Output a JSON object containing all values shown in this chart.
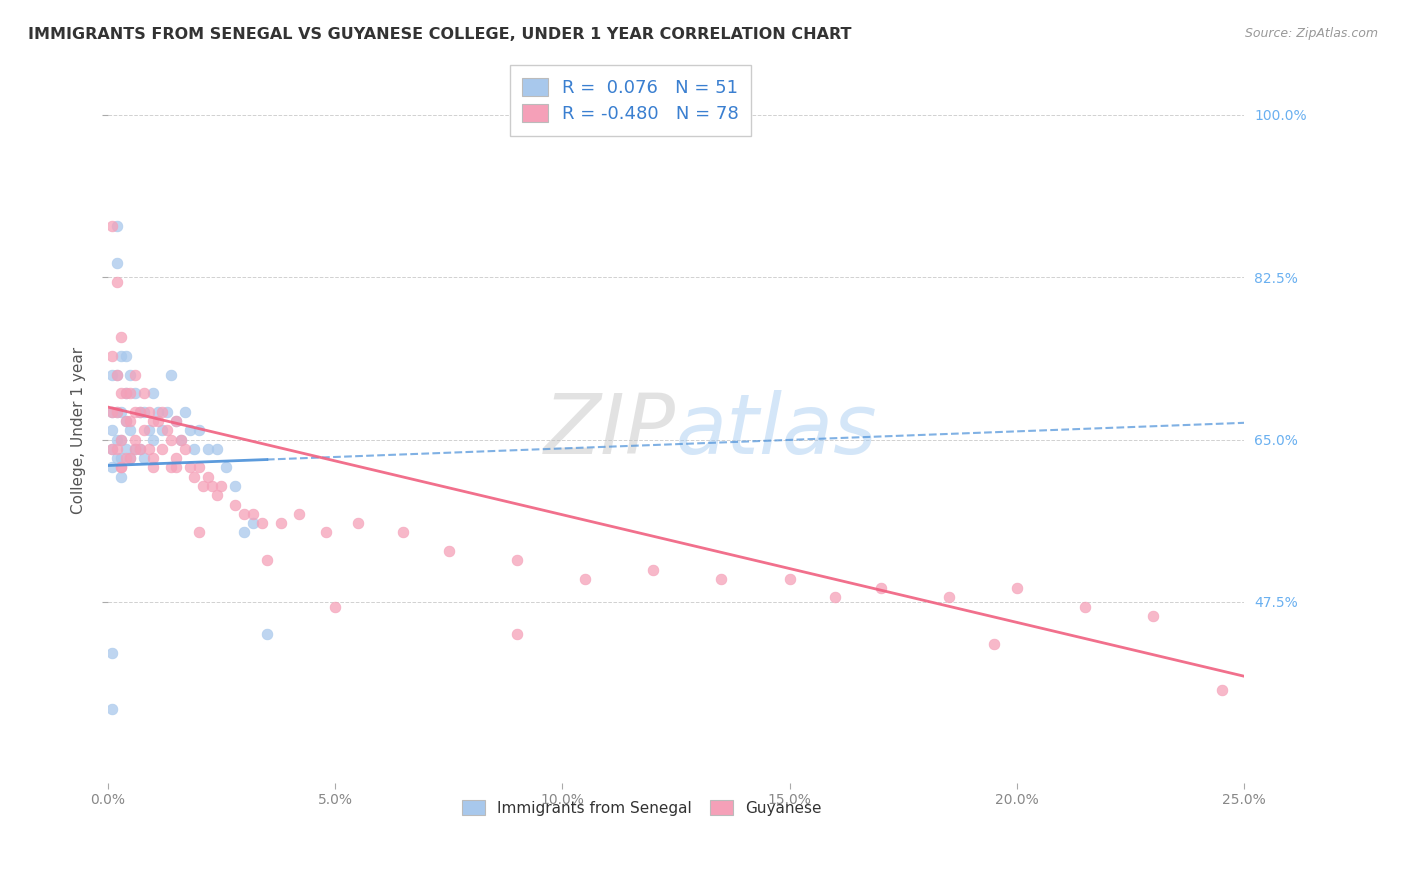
{
  "title": "IMMIGRANTS FROM SENEGAL VS GUYANESE COLLEGE, UNDER 1 YEAR CORRELATION CHART",
  "source": "Source: ZipAtlas.com",
  "ylabel": "College, Under 1 year",
  "watermark": "ZIPatlas",
  "legend_senegal_label": "Immigrants from Senegal",
  "legend_guyanese_label": "Guyanese",
  "senegal_R": "0.076",
  "senegal_N": "51",
  "guyanese_R": "-0.480",
  "guyanese_N": "78",
  "senegal_color": "#a8c8ec",
  "guyanese_color": "#f5a0b8",
  "senegal_line_color": "#4a90d9",
  "guyanese_line_color": "#f06080",
  "background_color": "#ffffff",
  "grid_color": "#cccccc",
  "title_color": "#333333",
  "right_axis_color": "#6ab0f0",
  "xlim": [
    0.0,
    0.25
  ],
  "ylim": [
    0.28,
    1.04
  ],
  "xticks": [
    0.0,
    0.05,
    0.1,
    0.15,
    0.2,
    0.25
  ],
  "xticklabels": [
    "0.0%",
    "5.0%",
    "10.0%",
    "15.0%",
    "20.0%",
    "25.0%"
  ],
  "yticks": [
    0.475,
    0.65,
    0.825,
    1.0
  ],
  "yticklabels": [
    "47.5%",
    "65.0%",
    "82.5%",
    "100.0%"
  ],
  "senegal_x": [
    0.001,
    0.001,
    0.001,
    0.001,
    0.001,
    0.002,
    0.002,
    0.002,
    0.002,
    0.002,
    0.002,
    0.003,
    0.003,
    0.003,
    0.003,
    0.003,
    0.004,
    0.004,
    0.004,
    0.004,
    0.005,
    0.005,
    0.005,
    0.006,
    0.006,
    0.007,
    0.007,
    0.008,
    0.008,
    0.009,
    0.01,
    0.01,
    0.011,
    0.012,
    0.013,
    0.014,
    0.015,
    0.016,
    0.017,
    0.018,
    0.019,
    0.02,
    0.022,
    0.024,
    0.026,
    0.028,
    0.03,
    0.032,
    0.035,
    0.001,
    0.001
  ],
  "senegal_y": [
    0.72,
    0.68,
    0.66,
    0.64,
    0.62,
    0.88,
    0.84,
    0.72,
    0.68,
    0.65,
    0.63,
    0.74,
    0.68,
    0.65,
    0.63,
    0.61,
    0.74,
    0.7,
    0.67,
    0.64,
    0.72,
    0.66,
    0.63,
    0.7,
    0.64,
    0.68,
    0.64,
    0.68,
    0.63,
    0.66,
    0.7,
    0.65,
    0.68,
    0.66,
    0.68,
    0.72,
    0.67,
    0.65,
    0.68,
    0.66,
    0.64,
    0.66,
    0.64,
    0.64,
    0.62,
    0.6,
    0.55,
    0.56,
    0.44,
    0.42,
    0.36
  ],
  "guyanese_x": [
    0.001,
    0.001,
    0.001,
    0.001,
    0.002,
    0.002,
    0.002,
    0.002,
    0.003,
    0.003,
    0.003,
    0.003,
    0.004,
    0.004,
    0.004,
    0.005,
    0.005,
    0.005,
    0.006,
    0.006,
    0.006,
    0.007,
    0.007,
    0.008,
    0.008,
    0.009,
    0.009,
    0.01,
    0.01,
    0.011,
    0.012,
    0.012,
    0.013,
    0.014,
    0.014,
    0.015,
    0.015,
    0.016,
    0.017,
    0.018,
    0.019,
    0.02,
    0.021,
    0.022,
    0.023,
    0.024,
    0.025,
    0.028,
    0.03,
    0.032,
    0.034,
    0.038,
    0.042,
    0.048,
    0.055,
    0.065,
    0.075,
    0.09,
    0.105,
    0.12,
    0.135,
    0.15,
    0.17,
    0.185,
    0.2,
    0.215,
    0.23,
    0.245,
    0.003,
    0.006,
    0.01,
    0.015,
    0.02,
    0.035,
    0.05,
    0.09,
    0.16,
    0.195
  ],
  "guyanese_y": [
    0.88,
    0.74,
    0.68,
    0.64,
    0.82,
    0.72,
    0.68,
    0.64,
    0.76,
    0.7,
    0.65,
    0.62,
    0.7,
    0.67,
    0.63,
    0.7,
    0.67,
    0.63,
    0.72,
    0.68,
    0.64,
    0.68,
    0.64,
    0.7,
    0.66,
    0.68,
    0.64,
    0.67,
    0.63,
    0.67,
    0.68,
    0.64,
    0.66,
    0.65,
    0.62,
    0.67,
    0.63,
    0.65,
    0.64,
    0.62,
    0.61,
    0.62,
    0.6,
    0.61,
    0.6,
    0.59,
    0.6,
    0.58,
    0.57,
    0.57,
    0.56,
    0.56,
    0.57,
    0.55,
    0.56,
    0.55,
    0.53,
    0.52,
    0.5,
    0.51,
    0.5,
    0.5,
    0.49,
    0.48,
    0.49,
    0.47,
    0.46,
    0.38,
    0.62,
    0.65,
    0.62,
    0.62,
    0.55,
    0.52,
    0.47,
    0.44,
    0.48,
    0.43
  ],
  "senegal_line_x0": 0.0,
  "senegal_line_x1": 0.25,
  "senegal_line_y0": 0.622,
  "senegal_line_y1": 0.668,
  "guyanese_line_x0": 0.0,
  "guyanese_line_x1": 0.25,
  "guyanese_line_y0": 0.685,
  "guyanese_line_y1": 0.395
}
